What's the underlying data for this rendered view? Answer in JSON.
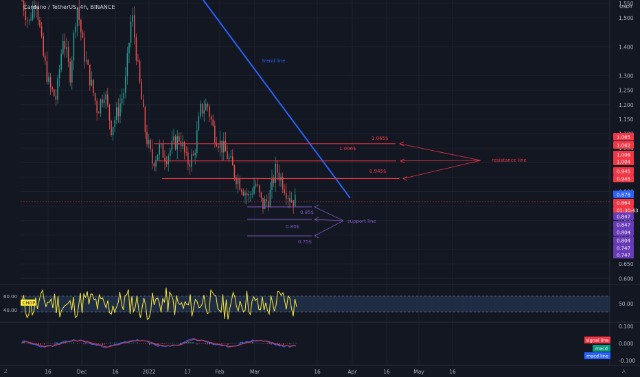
{
  "header": {
    "title": "Cardano / TetherUS, 4h, BINANCE",
    "currency": "USDT"
  },
  "corner": {
    "left": "Z",
    "right": "A"
  },
  "chart_data": {
    "type": "candlestick",
    "title": "Cardano / TetherUS, 4h, BINANCE",
    "price_axis": {
      "unit": "USDT",
      "ticks": [
        "1.550",
        "1.500",
        "1.400",
        "1.300",
        "1.250",
        "1.200",
        "1.150",
        "1.100",
        "1.050",
        "1.000",
        "0.950",
        "0.900",
        "0.850",
        "0.800",
        "0.750",
        "0.700",
        "0.650",
        "0.600"
      ]
    },
    "time_axis": {
      "ticks": [
        "16",
        "Dec",
        "16",
        "2022",
        "17",
        "Feb",
        "Mar",
        "16",
        "Apr",
        "16",
        "May",
        "16"
      ]
    },
    "price_path": [
      [
        0,
        1.56
      ],
      [
        4,
        1.48
      ],
      [
        8,
        1.58
      ],
      [
        12,
        1.38
      ],
      [
        16,
        1.26
      ],
      [
        20,
        1.22
      ],
      [
        24,
        1.44
      ],
      [
        28,
        1.3
      ],
      [
        32,
        1.55
      ],
      [
        36,
        1.38
      ],
      [
        40,
        1.28
      ],
      [
        44,
        1.18
      ],
      [
        48,
        1.25
      ],
      [
        52,
        1.12
      ],
      [
        56,
        1.18
      ],
      [
        60,
        1.26
      ],
      [
        64,
        1.52
      ],
      [
        68,
        1.3
      ],
      [
        72,
        1.1
      ],
      [
        76,
        1.0
      ],
      [
        80,
        1.05
      ],
      [
        84,
        1.02
      ],
      [
        88,
        1.06
      ],
      [
        92,
        1.09
      ],
      [
        96,
        1.0
      ],
      [
        100,
        1.02
      ],
      [
        104,
        1.18
      ],
      [
        108,
        1.2
      ],
      [
        112,
        1.1
      ],
      [
        116,
        1.06
      ],
      [
        120,
        1.02
      ],
      [
        124,
        0.96
      ],
      [
        128,
        0.92
      ],
      [
        132,
        0.88
      ],
      [
        136,
        0.93
      ],
      [
        140,
        0.85
      ],
      [
        144,
        0.88
      ],
      [
        148,
        0.98
      ],
      [
        152,
        0.93
      ],
      [
        156,
        0.88
      ],
      [
        160,
        0.864
      ]
    ],
    "horizontal_levels": {
      "resistance": [
        {
          "value": 1.065,
          "label": "1.065$"
        },
        {
          "value": 1.006,
          "label": "1.006$"
        },
        {
          "value": 0.945,
          "label": "0.945$"
        }
      ],
      "support": [
        {
          "value": 0.847,
          "label": "0.85$"
        },
        {
          "value": 0.804,
          "label": "0.80$"
        },
        {
          "value": 0.747,
          "label": "0.75$"
        }
      ]
    },
    "annotations": {
      "trend_line": "trend line",
      "resistance_line": "resistance line",
      "support_line": "support line"
    },
    "price_tags": [
      {
        "value": 1.065,
        "text": "1.065",
        "color": "#f23645"
      },
      {
        "value": 1.062,
        "text": "1.062",
        "color": "#f23645"
      },
      {
        "value": 1.006,
        "text": "1.006",
        "color": "#f23645"
      },
      {
        "value": 1.004,
        "text": "1.004",
        "color": "#f23645"
      },
      {
        "value": 0.945,
        "text": "0.945",
        "color": "#f23645"
      },
      {
        "value": 0.945,
        "text": "0.945",
        "color": "#f23645"
      },
      {
        "value": 0.878,
        "text": "0.878",
        "color": "#2962ff"
      },
      {
        "value": 0.864,
        "text": "0.864",
        "color": "#f23645"
      },
      {
        "value": 0.864,
        "text": "01:30:43",
        "color": "#f23645"
      },
      {
        "value": 0.847,
        "text": "0.847",
        "color": "#673ab7"
      },
      {
        "value": 0.847,
        "text": "0.847",
        "color": "#673ab7"
      },
      {
        "value": 0.804,
        "text": "0.804",
        "color": "#673ab7"
      },
      {
        "value": 0.804,
        "text": "0.804",
        "color": "#673ab7"
      },
      {
        "value": 0.747,
        "text": "0.747",
        "color": "#673ab7"
      },
      {
        "value": 0.747,
        "text": "0.747",
        "color": "#673ab7"
      }
    ],
    "chop": {
      "label": "CHOP",
      "band_upper": 60,
      "band_lower": 40,
      "left_ticks": [
        "60.00",
        "40.00"
      ],
      "right_tick": "50.00"
    },
    "macd": {
      "right_ticks": [
        "0.100",
        "0.000",
        "-0.100"
      ],
      "legend": [
        {
          "text": "signal line",
          "color": "#f23645"
        },
        {
          "text": "macd",
          "color": "#089981"
        },
        {
          "text": "macd line",
          "color": "#2962ff"
        }
      ]
    },
    "colors": {
      "background": "#131722",
      "up": "#26a69a",
      "down": "#ef5350",
      "trend_line": "#2962ff",
      "resistance": "#f23645",
      "support": "#7e57c2",
      "chop": "#ffeb3b",
      "band_fill": "#1f2d44"
    }
  }
}
